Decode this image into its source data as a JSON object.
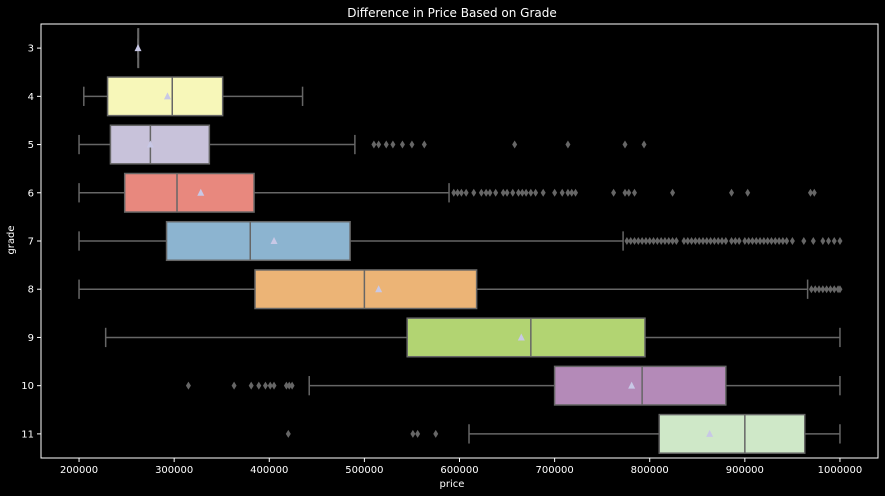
{
  "chart_data": {
    "type": "boxplot",
    "orientation": "horizontal",
    "title": "Difference in Price Based on Grade",
    "xlabel": "price",
    "ylabel": "grade",
    "xlim": [
      160000,
      1040000
    ],
    "xticks": [
      200000,
      300000,
      400000,
      500000,
      600000,
      700000,
      800000,
      900000,
      1000000
    ],
    "xtick_labels": [
      "200000",
      "300000",
      "400000",
      "500000",
      "600000",
      "700000",
      "800000",
      "900000",
      "1000000"
    ],
    "grid": false,
    "mean_marker": "triangle",
    "colors": {
      "background": "#000000",
      "text": "#ffffff",
      "axis": "#ffffff",
      "whisker": "#666666",
      "mean": "#c8c8e6",
      "outlier": "#666666"
    },
    "series": [
      {
        "category": "3",
        "color": "#8dd3c7",
        "whislo": 262000,
        "q1": 262000,
        "median": 262000,
        "q3": 262000,
        "whishi": 262000,
        "mean": 262000,
        "fliers": []
      },
      {
        "category": "4",
        "color": "#f7f7b9",
        "whislo": 205000,
        "q1": 230000,
        "median": 298000,
        "q3": 351000,
        "whishi": 435000,
        "mean": 293000,
        "fliers": []
      },
      {
        "category": "5",
        "color": "#c8c2da",
        "whislo": 200000,
        "q1": 233000,
        "median": 275000,
        "q3": 337000,
        "whishi": 490000,
        "mean": 275000,
        "fliers": [
          510000,
          515000,
          523000,
          530000,
          540000,
          550000,
          563000,
          658000,
          714000,
          774000,
          794000
        ]
      },
      {
        "category": "6",
        "color": "#e8887e",
        "whislo": 200000,
        "q1": 248000,
        "median": 303000,
        "q3": 384000,
        "whishi": 589000,
        "mean": 328000,
        "fliers": [
          594000,
          598000,
          602000,
          607000,
          615000,
          623000,
          628000,
          632000,
          638000,
          646000,
          650000,
          656000,
          662000,
          666000,
          670000,
          675000,
          680000,
          688000,
          700000,
          708000,
          714000,
          718000,
          722000,
          762000,
          774000,
          778000,
          784000,
          824000,
          886000,
          903000,
          969000,
          973000
        ]
      },
      {
        "category": "7",
        "color": "#8cb4d0",
        "whislo": 200000,
        "q1": 292000,
        "median": 380000,
        "q3": 485000,
        "whishi": 772000,
        "mean": 405000,
        "fliers": [
          776000,
          780000,
          784000,
          788000,
          792000,
          796000,
          800000,
          804000,
          808000,
          812000,
          816000,
          820000,
          824000,
          828000,
          836000,
          840000,
          844000,
          848000,
          852000,
          856000,
          860000,
          864000,
          868000,
          872000,
          876000,
          880000,
          886000,
          890000,
          894000,
          900000,
          904000,
          908000,
          912000,
          916000,
          920000,
          924000,
          928000,
          932000,
          936000,
          940000,
          944000,
          950000,
          962000,
          972000,
          982000,
          988000,
          994000,
          1000000
        ]
      },
      {
        "category": "8",
        "color": "#ecb476",
        "whislo": 200000,
        "q1": 385000,
        "median": 500000,
        "q3": 618000,
        "whishi": 966000,
        "mean": 515000,
        "fliers": [
          970000,
          974000,
          978000,
          982000,
          986000,
          990000,
          994000,
          998000,
          1000000
        ]
      },
      {
        "category": "9",
        "color": "#b2d472",
        "whislo": 228000,
        "q1": 545000,
        "median": 675000,
        "q3": 795000,
        "whishi": 1000000,
        "mean": 665000,
        "fliers": []
      },
      {
        "category": "10",
        "color": "#b48ab8",
        "whislo": 442000,
        "q1": 700000,
        "median": 792000,
        "q3": 880000,
        "whishi": 1000000,
        "mean": 781000,
        "fliers": [
          315000,
          363000,
          381000,
          389000,
          396000,
          401000,
          405000,
          418000,
          421000,
          424000
        ]
      },
      {
        "category": "11",
        "color": "#cfe8c8",
        "whislo": 610000,
        "q1": 810000,
        "median": 900000,
        "q3": 963000,
        "whishi": 1000000,
        "mean": 863000,
        "fliers": [
          420000,
          551000,
          556000,
          575000
        ]
      }
    ]
  }
}
